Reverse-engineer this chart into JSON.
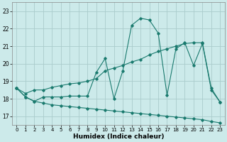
{
  "xlabel": "Humidex (Indice chaleur)",
  "bg_color": "#cceaea",
  "grid_color": "#aacccc",
  "line_color": "#1a7a6e",
  "xlim": [
    -0.5,
    23.5
  ],
  "ylim": [
    16.5,
    23.5
  ],
  "yticks": [
    17,
    18,
    19,
    20,
    21,
    22,
    23
  ],
  "xticks": [
    0,
    1,
    2,
    3,
    4,
    5,
    6,
    7,
    8,
    9,
    10,
    11,
    12,
    13,
    14,
    15,
    16,
    17,
    18,
    19,
    20,
    21,
    22,
    23
  ],
  "line1_x": [
    0,
    1,
    2,
    3,
    4,
    5,
    6,
    7,
    8,
    9,
    10,
    11,
    12,
    13,
    14,
    15,
    16,
    17,
    18,
    19,
    20,
    21,
    22,
    23
  ],
  "line1_y": [
    18.6,
    18.1,
    17.85,
    17.75,
    17.65,
    17.6,
    17.55,
    17.5,
    17.45,
    17.4,
    17.35,
    17.3,
    17.25,
    17.2,
    17.15,
    17.1,
    17.05,
    17.0,
    16.95,
    16.9,
    16.85,
    16.8,
    16.7,
    16.62
  ],
  "line2_x": [
    0,
    1,
    2,
    3,
    4,
    5,
    6,
    7,
    8,
    9,
    10,
    11,
    12,
    13,
    14,
    15,
    16,
    17,
    18,
    19,
    20,
    21,
    22,
    23
  ],
  "line2_y": [
    18.6,
    18.1,
    17.85,
    18.1,
    18.1,
    18.1,
    18.15,
    18.15,
    18.15,
    19.5,
    20.3,
    18.0,
    19.6,
    22.2,
    22.6,
    22.5,
    21.75,
    18.2,
    20.85,
    21.2,
    19.9,
    21.15,
    18.5,
    17.8
  ],
  "line3_x": [
    0,
    1,
    2,
    3,
    4,
    5,
    6,
    7,
    8,
    9,
    10,
    11,
    12,
    13,
    14,
    15,
    16,
    17,
    18,
    19,
    20,
    21,
    22,
    23
  ],
  "line3_y": [
    18.6,
    18.3,
    18.5,
    18.5,
    18.65,
    18.75,
    18.85,
    18.9,
    19.0,
    19.15,
    19.6,
    19.75,
    19.9,
    20.1,
    20.25,
    20.5,
    20.7,
    20.85,
    21.0,
    21.15,
    21.2,
    21.2,
    18.6,
    17.8
  ]
}
